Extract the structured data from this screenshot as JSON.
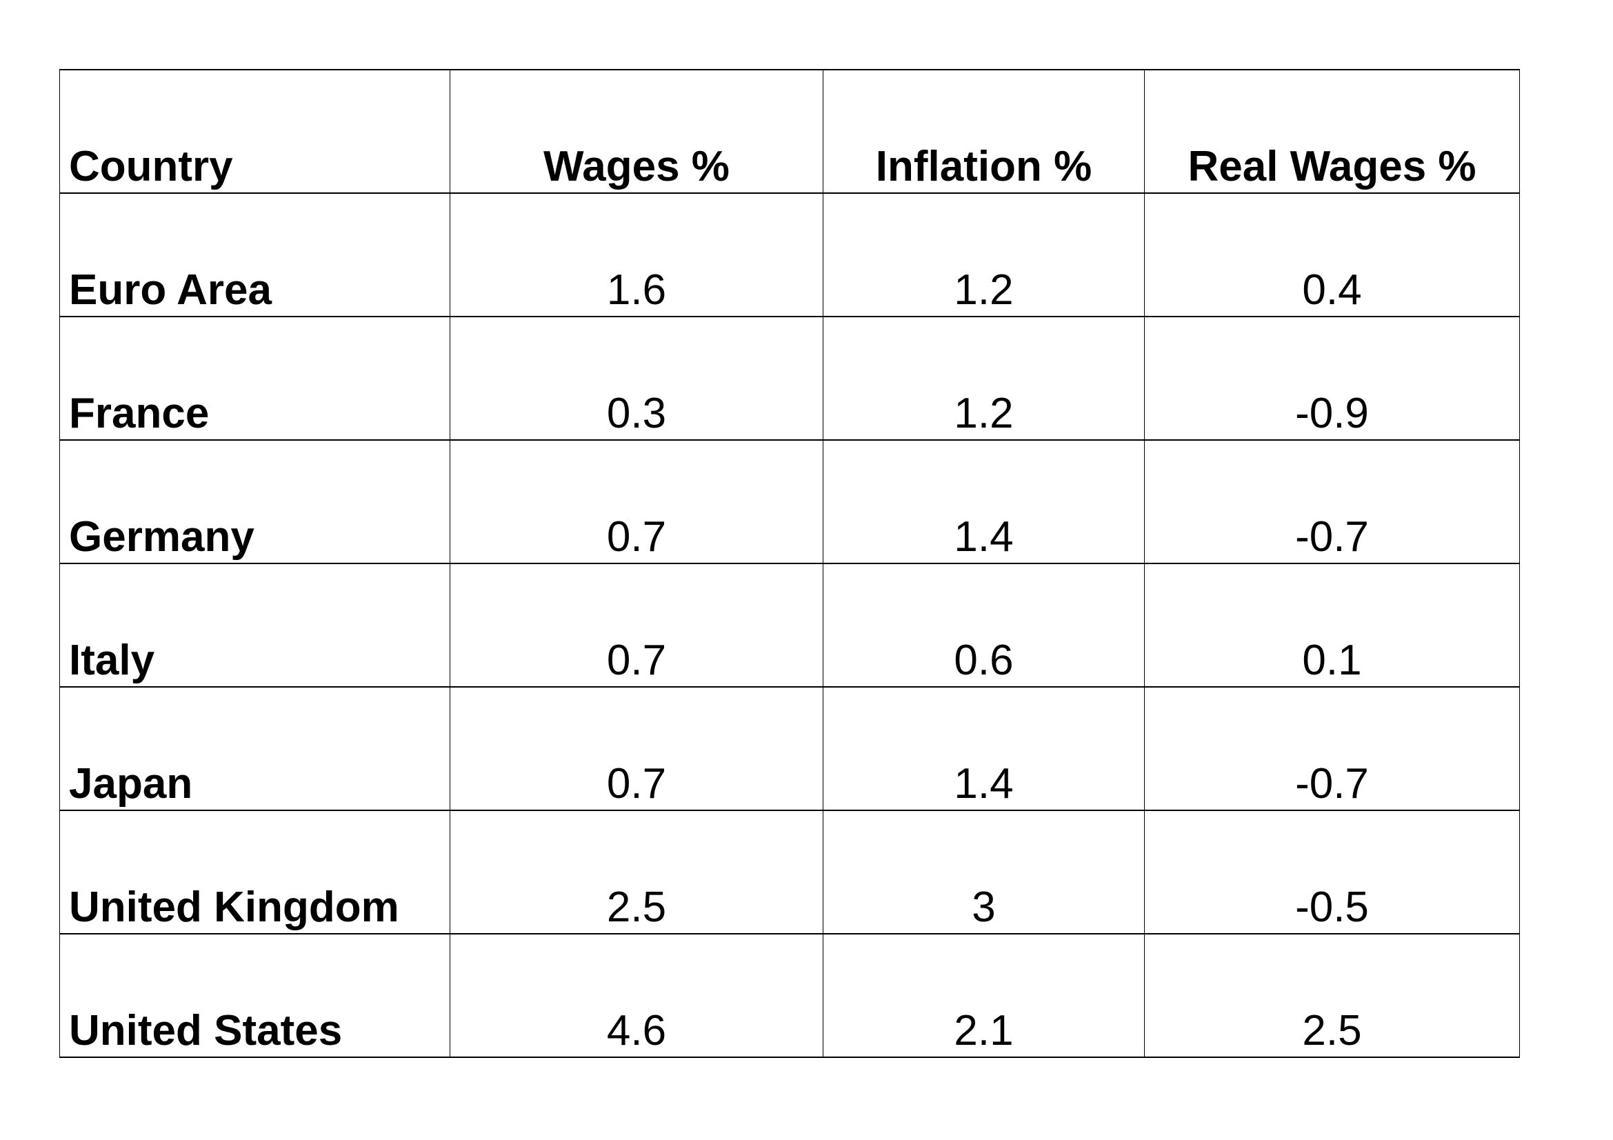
{
  "page": {
    "background": "#ffffff"
  },
  "table": {
    "border_color": "#000000",
    "text_color": "#000000",
    "columns": [
      {
        "id": "country",
        "label": "Country",
        "align": "left"
      },
      {
        "id": "wages",
        "label": "Wages %",
        "align": "center"
      },
      {
        "id": "inflation",
        "label": "Inflation %",
        "align": "center"
      },
      {
        "id": "real_wages",
        "label": "Real Wages %",
        "align": "center"
      }
    ],
    "rows": [
      {
        "country": "Euro Area",
        "wages": "1.6",
        "inflation": "1.2",
        "real_wages": "0.4"
      },
      {
        "country": "France",
        "wages": "0.3",
        "inflation": "1.2",
        "real_wages": "-0.9"
      },
      {
        "country": "Germany",
        "wages": "0.7",
        "inflation": "1.4",
        "real_wages": "-0.7"
      },
      {
        "country": "Italy",
        "wages": "0.7",
        "inflation": "0.6",
        "real_wages": "0.1"
      },
      {
        "country": "Japan",
        "wages": "0.7",
        "inflation": "1.4",
        "real_wages": "-0.7"
      },
      {
        "country": "United Kingdom",
        "wages": "2.5",
        "inflation": "3",
        "real_wages": "-0.5"
      },
      {
        "country": "United States",
        "wages": "4.6",
        "inflation": "2.1",
        "real_wages": "2.5"
      }
    ]
  }
}
